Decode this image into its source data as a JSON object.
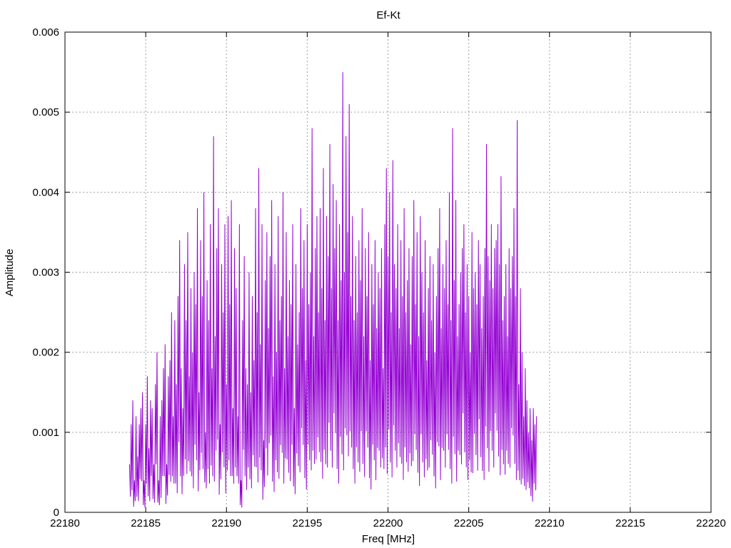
{
  "chart_data": {
    "type": "line",
    "title": "Ef-Kt",
    "xlabel": "Freq [MHz]",
    "ylabel": "Amplitude",
    "xlim": [
      22180,
      22220
    ],
    "ylim": [
      0,
      0.006
    ],
    "x_ticks": [
      22180,
      22185,
      22190,
      22195,
      22200,
      22205,
      22210,
      22215,
      22220
    ],
    "x_tick_labels": [
      "22180",
      "22185",
      "22190",
      "22195",
      "22200",
      "22205",
      "22210",
      "22215",
      "22220"
    ],
    "y_ticks": [
      0,
      0.001,
      0.002,
      0.003,
      0.004,
      0.005,
      0.006
    ],
    "y_tick_labels": [
      "0",
      "0.001",
      "0.002",
      "0.003",
      "0.004",
      "0.005",
      "0.006"
    ],
    "grid": true,
    "series_color": "#9400d3",
    "series": [
      {
        "x_start": 22184.0,
        "x_step": 0.1,
        "values": [
          0.0006,
          0.0011,
          0.0014,
          0.0004,
          0.0012,
          0.0007,
          0.0011,
          0.0013,
          0.0015,
          0.0004,
          0.0011,
          0.0017,
          0.0008,
          0.0014,
          0.0013,
          0.0006,
          0.0016,
          0.002,
          0.0004,
          0.0012,
          0.0014,
          0.0018,
          0.0021,
          0.0006,
          0.0017,
          0.0019,
          0.0025,
          0.0012,
          0.0024,
          0.0016,
          0.0027,
          0.0034,
          0.0018,
          0.0013,
          0.0031,
          0.0024,
          0.0035,
          0.0017,
          0.0028,
          0.002,
          0.003,
          0.0026,
          0.0038,
          0.0015,
          0.0034,
          0.0027,
          0.004,
          0.001,
          0.0029,
          0.0024,
          0.0036,
          0.0018,
          0.0047,
          0.0022,
          0.0033,
          0.0038,
          0.0011,
          0.0031,
          0.0025,
          0.0036,
          0.0016,
          0.0037,
          0.0026,
          0.0039,
          0.0013,
          0.0033,
          0.0028,
          0.0012,
          0.0036,
          0.0004,
          0.0024,
          0.0032,
          0.0018,
          0.0016,
          0.003,
          0.0015,
          0.0027,
          0.0019,
          0.0038,
          0.0025,
          0.0043,
          0.0021,
          0.0036,
          0.0009,
          0.0029,
          0.0035,
          0.0023,
          0.0032,
          0.0039,
          0.0017,
          0.0031,
          0.002,
          0.0037,
          0.0024,
          0.0027,
          0.004,
          0.0018,
          0.0035,
          0.0022,
          0.0029,
          0.0026,
          0.0036,
          0.0013,
          0.0031,
          0.0021,
          0.0025,
          0.0038,
          0.0028,
          0.0034,
          0.0019,
          0.0036,
          0.0026,
          0.003,
          0.0048,
          0.0022,
          0.0033,
          0.0037,
          0.0025,
          0.0038,
          0.0028,
          0.0043,
          0.0024,
          0.0037,
          0.0032,
          0.0046,
          0.0028,
          0.0041,
          0.0033,
          0.0039,
          0.0024,
          0.0036,
          0.0029,
          0.0055,
          0.003,
          0.0047,
          0.0035,
          0.0051,
          0.0027,
          0.0037,
          0.0024,
          0.0032,
          0.0025,
          0.0034,
          0.0029,
          0.0038,
          0.0022,
          0.0033,
          0.0027,
          0.0035,
          0.0019,
          0.0031,
          0.0026,
          0.0034,
          0.0023,
          0.003,
          0.0028,
          0.0033,
          0.0018,
          0.0036,
          0.0043,
          0.0032,
          0.004,
          0.0025,
          0.0044,
          0.0031,
          0.0028,
          0.0036,
          0.0023,
          0.0034,
          0.0027,
          0.0038,
          0.0025,
          0.0029,
          0.0033,
          0.0021,
          0.0032,
          0.0039,
          0.0026,
          0.0035,
          0.0022,
          0.0037,
          0.003,
          0.0025,
          0.0034,
          0.0019,
          0.0028,
          0.0032,
          0.0024,
          0.0031,
          0.002,
          0.0027,
          0.0033,
          0.0038,
          0.0023,
          0.0031,
          0.0028,
          0.0034,
          0.0026,
          0.004,
          0.0024,
          0.0048,
          0.0029,
          0.0039,
          0.0022,
          0.0026,
          0.003,
          0.0033,
          0.0036,
          0.0025,
          0.0031,
          0.0027,
          0.002,
          0.0035,
          0.0028,
          0.003,
          0.0026,
          0.0034,
          0.0031,
          0.0023,
          0.0027,
          0.0033,
          0.0046,
          0.0032,
          0.0029,
          0.0036,
          0.0028,
          0.0033,
          0.0034,
          0.0036,
          0.0031,
          0.0042,
          0.0024,
          0.0027,
          0.0031,
          0.0022,
          0.0033,
          0.0028,
          0.0032,
          0.0038,
          0.0027,
          0.0049,
          0.0016,
          0.0028,
          0.002,
          0.0012,
          0.0018,
          0.0014,
          0.001,
          0.0013,
          0.0009,
          0.0013,
          0.0011,
          0.0012
        ]
      }
    ]
  }
}
